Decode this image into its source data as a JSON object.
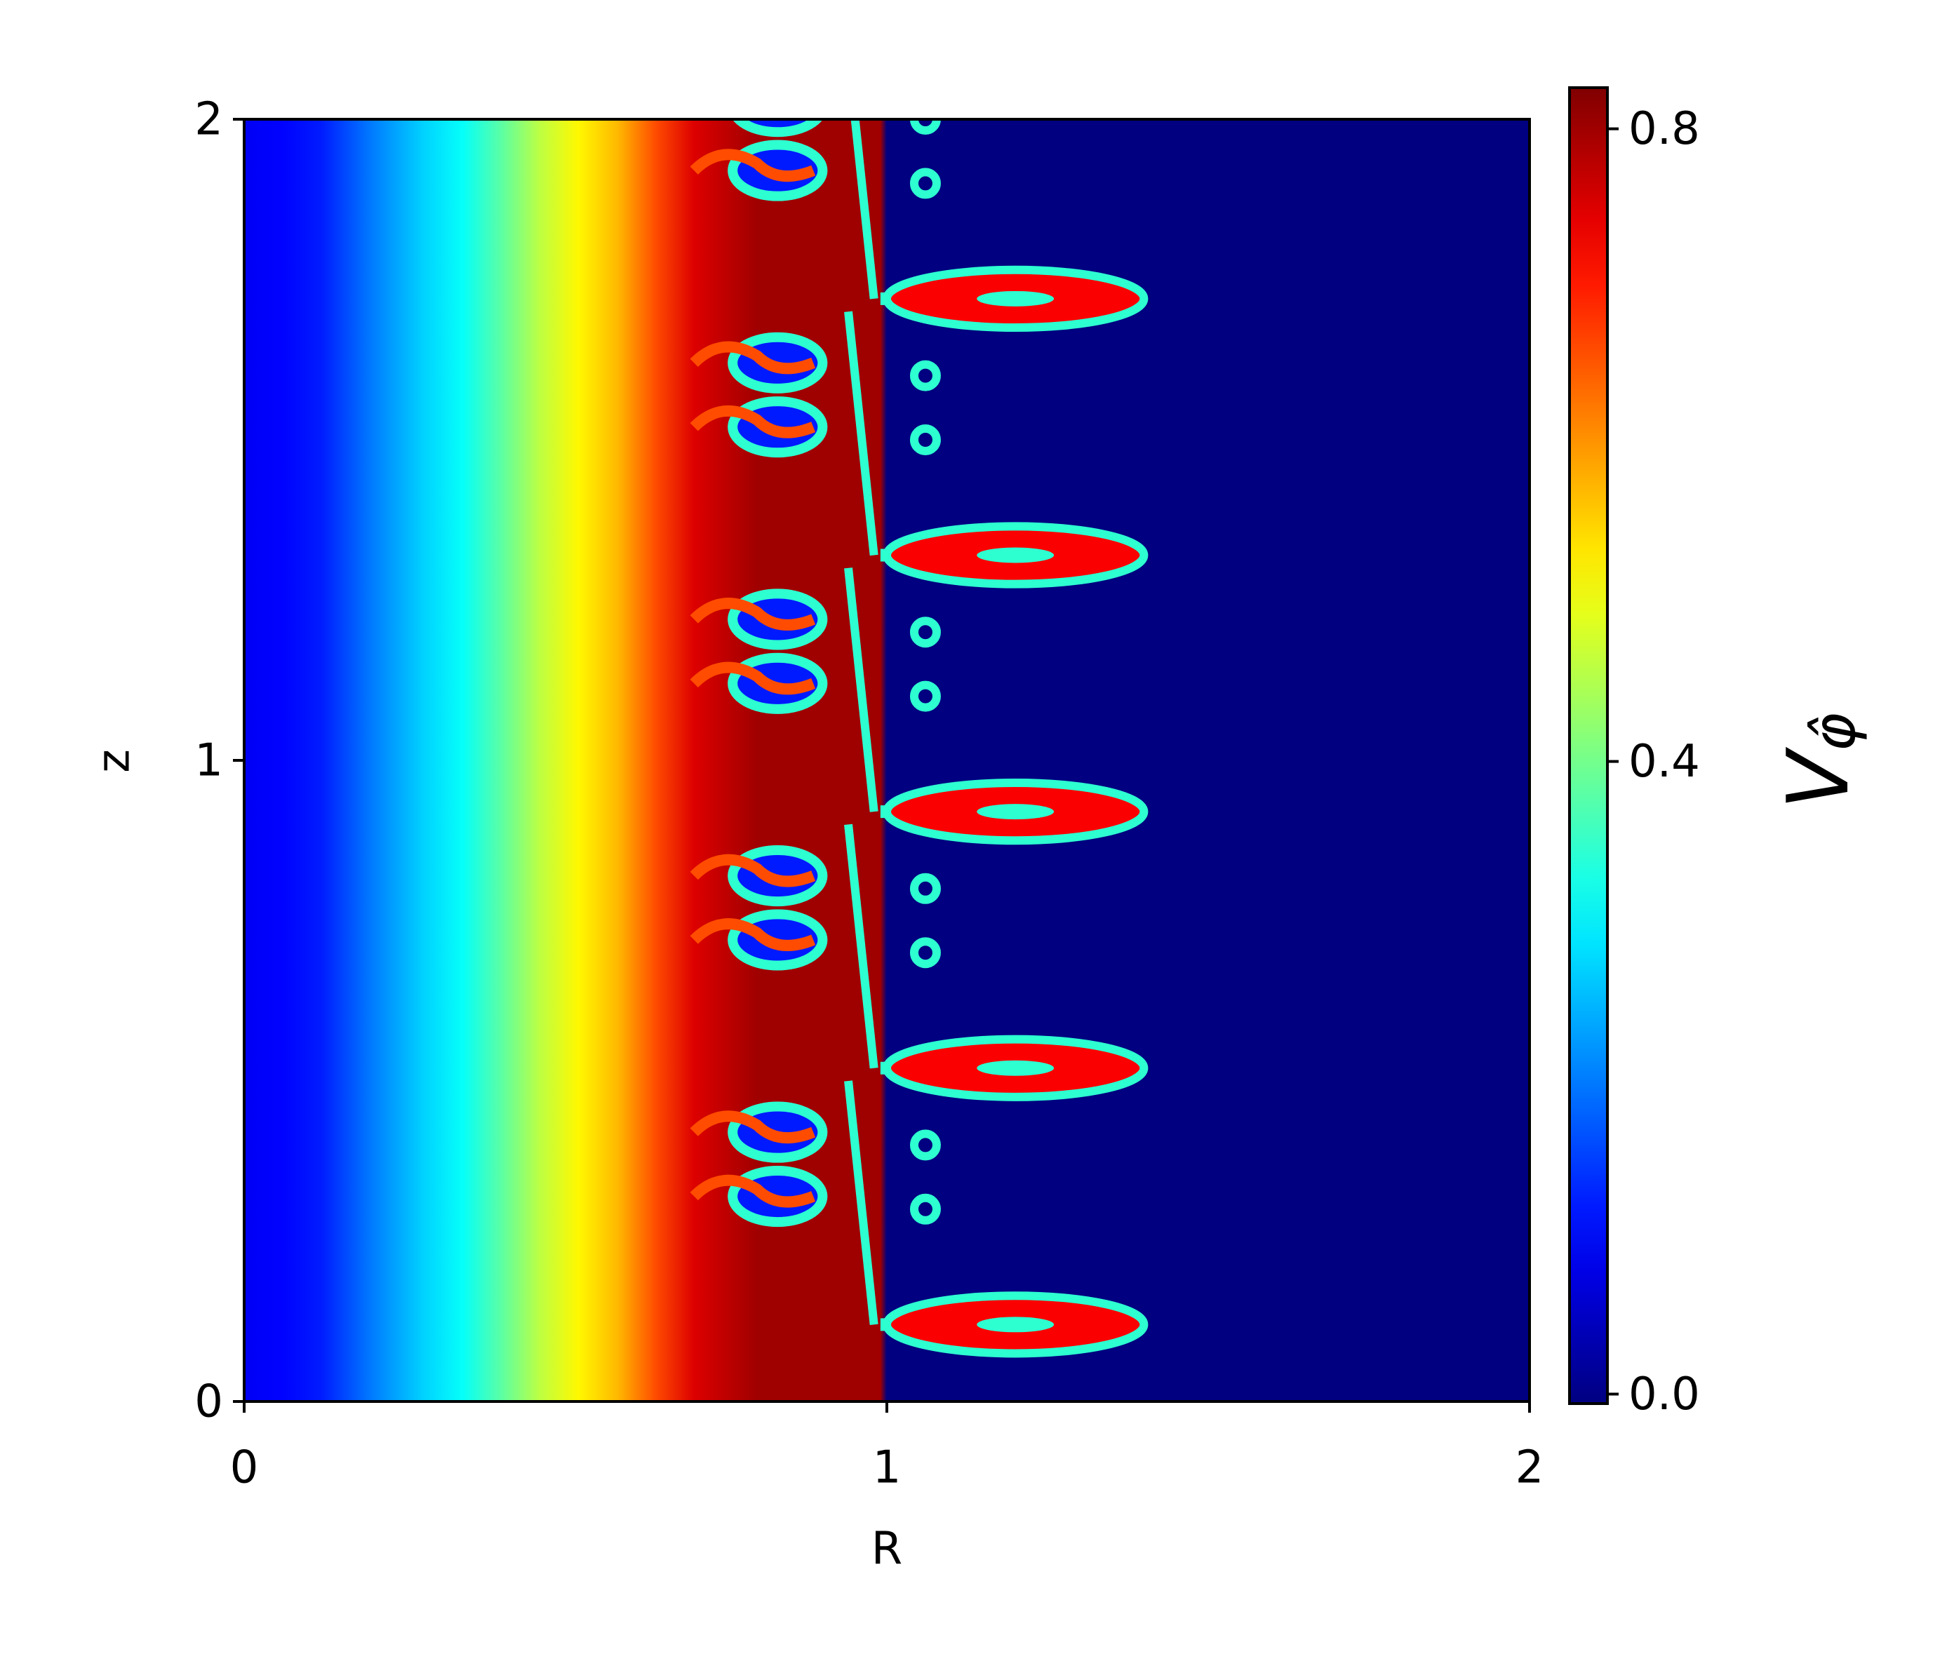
{
  "chart_data": {
    "type": "heatmap",
    "xlabel": "R",
    "ylabel": "z",
    "xlim": [
      0,
      2
    ],
    "ylim": [
      0,
      2
    ],
    "xticks": [
      0,
      1,
      2
    ],
    "yticks": [
      0,
      1,
      2
    ],
    "colormap": "jet",
    "clim": [
      -0.006,
      0.826
    ],
    "cticks": [
      {
        "value": 0,
        "label": "0.0"
      },
      0.4,
      0.8
    ],
    "colorbar_label": {
      "main": "V",
      "sub": "φ̂"
    },
    "x": [
      0,
      0.06,
      0.12,
      0.2,
      0.28,
      0.34,
      0.4,
      0.46,
      0.52,
      0.58,
      0.64,
      0.7,
      0.8,
      0.95,
      0.99,
      1.0,
      2.0
    ],
    "values": [
      0.09,
      0.1,
      0.12,
      0.2,
      0.27,
      0.31,
      0.38,
      0.46,
      0.52,
      0.57,
      0.66,
      0.75,
      0.8,
      0.8,
      0.8,
      -0.006,
      -0.006
    ]
  }
}
